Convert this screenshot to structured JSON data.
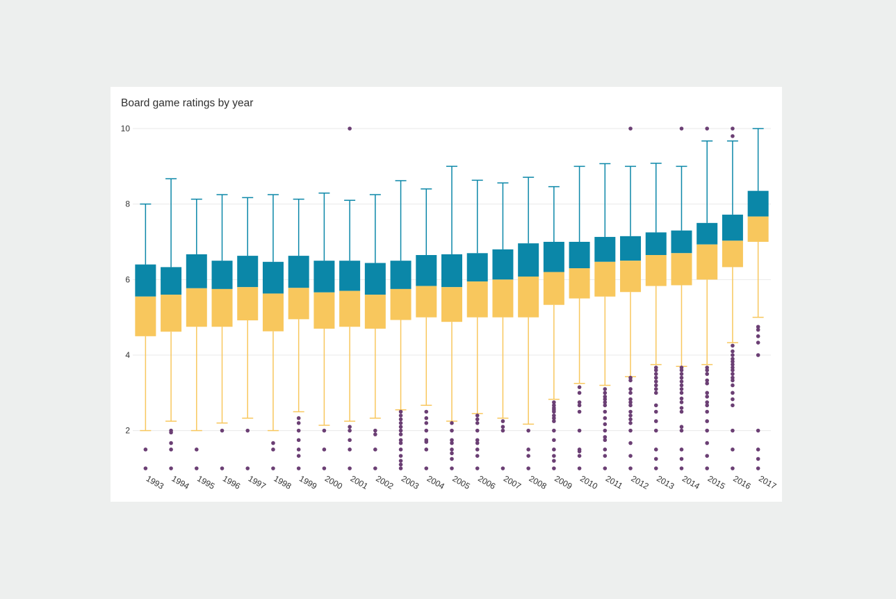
{
  "chart_data": {
    "type": "box",
    "title": "Board game ratings by year",
    "xlabel": "",
    "ylabel": "",
    "ylim": [
      1,
      10
    ],
    "yticks": [
      2,
      4,
      6,
      8,
      10
    ],
    "grid": true,
    "legend": "none",
    "colors": {
      "upper_box": "#0b87a8",
      "lower_box": "#f8c75d",
      "upper_whisker": "#0b87a8",
      "lower_whisker": "#f8c75d",
      "outlier": "#6b3f74"
    },
    "boxes": [
      {
        "year": "1993",
        "min": 2.0,
        "q1": 4.5,
        "median": 5.55,
        "q3": 6.4,
        "max": 8.0,
        "outliers": [
          1.0,
          1.5
        ]
      },
      {
        "year": "1994",
        "min": 2.25,
        "q1": 4.62,
        "median": 5.6,
        "q3": 6.33,
        "max": 8.67,
        "outliers": [
          1.0,
          1.5,
          1.67,
          2.0,
          1.95
        ]
      },
      {
        "year": "1995",
        "min": 2.0,
        "q1": 4.75,
        "median": 5.77,
        "q3": 6.67,
        "max": 8.13,
        "outliers": [
          1.0,
          1.5
        ]
      },
      {
        "year": "1996",
        "min": 2.2,
        "q1": 4.75,
        "median": 5.75,
        "q3": 6.5,
        "max": 8.25,
        "outliers": [
          1.0,
          2.0
        ]
      },
      {
        "year": "1997",
        "min": 2.33,
        "q1": 4.92,
        "median": 5.8,
        "q3": 6.63,
        "max": 8.17,
        "outliers": [
          1.0,
          2.0
        ]
      },
      {
        "year": "1998",
        "min": 2.0,
        "q1": 4.63,
        "median": 5.63,
        "q3": 6.47,
        "max": 8.25,
        "outliers": [
          1.0,
          1.5,
          1.67
        ]
      },
      {
        "year": "1999",
        "min": 2.5,
        "q1": 4.95,
        "median": 5.78,
        "q3": 6.63,
        "max": 8.13,
        "outliers": [
          1.0,
          1.33,
          1.5,
          1.75,
          2.0,
          2.2,
          2.33
        ]
      },
      {
        "year": "2000",
        "min": 2.14,
        "q1": 4.7,
        "median": 5.66,
        "q3": 6.5,
        "max": 8.29,
        "outliers": [
          1.0,
          1.5,
          2.0
        ]
      },
      {
        "year": "2001",
        "min": 2.25,
        "q1": 4.75,
        "median": 5.7,
        "q3": 6.5,
        "max": 8.1,
        "outliers": [
          1.0,
          1.5,
          1.75,
          2.0,
          2.1,
          10.0
        ]
      },
      {
        "year": "2002",
        "min": 2.33,
        "q1": 4.7,
        "median": 5.6,
        "q3": 6.44,
        "max": 8.25,
        "outliers": [
          1.0,
          1.5,
          1.9,
          2.0
        ]
      },
      {
        "year": "2003",
        "min": 2.55,
        "q1": 4.93,
        "median": 5.75,
        "q3": 6.5,
        "max": 8.62,
        "outliers": [
          1.0,
          1.1,
          1.2,
          1.33,
          1.5,
          1.67,
          1.75,
          1.9,
          2.0,
          2.1,
          2.2,
          2.3,
          2.4,
          2.5
        ]
      },
      {
        "year": "2004",
        "min": 2.67,
        "q1": 5.0,
        "median": 5.83,
        "q3": 6.65,
        "max": 8.4,
        "outliers": [
          1.0,
          1.5,
          1.7,
          1.75,
          2.0,
          2.2,
          2.33,
          2.5
        ]
      },
      {
        "year": "2005",
        "min": 2.25,
        "q1": 4.88,
        "median": 5.8,
        "q3": 6.67,
        "max": 9.0,
        "outliers": [
          1.0,
          1.25,
          1.4,
          1.5,
          1.67,
          1.75,
          2.0,
          2.2
        ]
      },
      {
        "year": "2006",
        "min": 2.45,
        "q1": 5.0,
        "median": 5.95,
        "q3": 6.7,
        "max": 8.63,
        "outliers": [
          1.0,
          1.33,
          1.5,
          1.67,
          1.75,
          2.0,
          2.2,
          2.3,
          2.4
        ]
      },
      {
        "year": "2007",
        "min": 2.33,
        "q1": 5.0,
        "median": 6.0,
        "q3": 6.8,
        "max": 8.56,
        "outliers": [
          1.0,
          2.0,
          2.1,
          2.25
        ]
      },
      {
        "year": "2008",
        "min": 2.17,
        "q1": 5.0,
        "median": 6.08,
        "q3": 6.96,
        "max": 8.71,
        "outliers": [
          1.0,
          1.33,
          1.5,
          2.0
        ]
      },
      {
        "year": "2009",
        "min": 2.83,
        "q1": 5.33,
        "median": 6.2,
        "q3": 7.0,
        "max": 8.46,
        "outliers": [
          1.0,
          1.2,
          1.33,
          1.5,
          1.75,
          2.0,
          2.25,
          2.33,
          2.4,
          2.5,
          2.55,
          2.6,
          2.67,
          2.75
        ]
      },
      {
        "year": "2010",
        "min": 3.25,
        "q1": 5.5,
        "median": 6.3,
        "q3": 7.0,
        "max": 9.0,
        "outliers": [
          1.0,
          1.33,
          1.45,
          1.5,
          2.0,
          2.5,
          2.67,
          2.75,
          3.0,
          3.15
        ]
      },
      {
        "year": "2011",
        "min": 3.2,
        "q1": 5.55,
        "median": 6.47,
        "q3": 7.13,
        "max": 9.07,
        "outliers": [
          1.0,
          1.33,
          1.5,
          1.75,
          1.83,
          2.0,
          2.17,
          2.33,
          2.5,
          2.67,
          2.75,
          2.83,
          2.9,
          3.0,
          3.1
        ]
      },
      {
        "year": "2012",
        "min": 3.43,
        "q1": 5.67,
        "median": 6.5,
        "q3": 7.15,
        "max": 9.0,
        "outliers": [
          1.0,
          1.33,
          1.67,
          2.0,
          2.2,
          2.3,
          2.4,
          2.5,
          2.67,
          2.75,
          2.83,
          3.0,
          3.1,
          3.33,
          3.4,
          10.0
        ]
      },
      {
        "year": "2013",
        "min": 3.75,
        "q1": 5.83,
        "median": 6.65,
        "q3": 7.25,
        "max": 9.08,
        "outliers": [
          1.0,
          1.25,
          1.5,
          2.0,
          2.25,
          2.5,
          2.67,
          3.0,
          3.1,
          3.2,
          3.3,
          3.4,
          3.5,
          3.6,
          3.67
        ]
      },
      {
        "year": "2014",
        "min": 3.7,
        "q1": 5.85,
        "median": 6.7,
        "q3": 7.3,
        "max": 9.0,
        "outliers": [
          1.0,
          1.25,
          1.5,
          2.0,
          2.1,
          2.5,
          2.6,
          2.75,
          2.85,
          3.0,
          3.1,
          3.2,
          3.3,
          3.4,
          3.5,
          3.6,
          3.67,
          10.0
        ]
      },
      {
        "year": "2015",
        "min": 3.75,
        "q1": 6.0,
        "median": 6.93,
        "q3": 7.5,
        "max": 9.67,
        "outliers": [
          1.0,
          1.33,
          1.67,
          2.0,
          2.25,
          2.5,
          2.67,
          2.75,
          2.9,
          3.0,
          3.25,
          3.33,
          3.5,
          3.6,
          3.67,
          10.0
        ]
      },
      {
        "year": "2016",
        "min": 4.33,
        "q1": 6.33,
        "median": 7.03,
        "q3": 7.72,
        "max": 9.67,
        "outliers": [
          1.0,
          1.5,
          2.0,
          2.67,
          2.83,
          3.0,
          3.2,
          3.33,
          3.4,
          3.5,
          3.6,
          3.67,
          3.75,
          3.83,
          3.9,
          4.0,
          4.1,
          4.25,
          9.8,
          10.0
        ]
      },
      {
        "year": "2017",
        "min": 5.0,
        "q1": 7.0,
        "median": 7.67,
        "q3": 8.35,
        "max": 10.0,
        "outliers": [
          1.0,
          1.25,
          1.5,
          2.0,
          4.0,
          4.33,
          4.5,
          4.67,
          4.75
        ]
      }
    ]
  }
}
